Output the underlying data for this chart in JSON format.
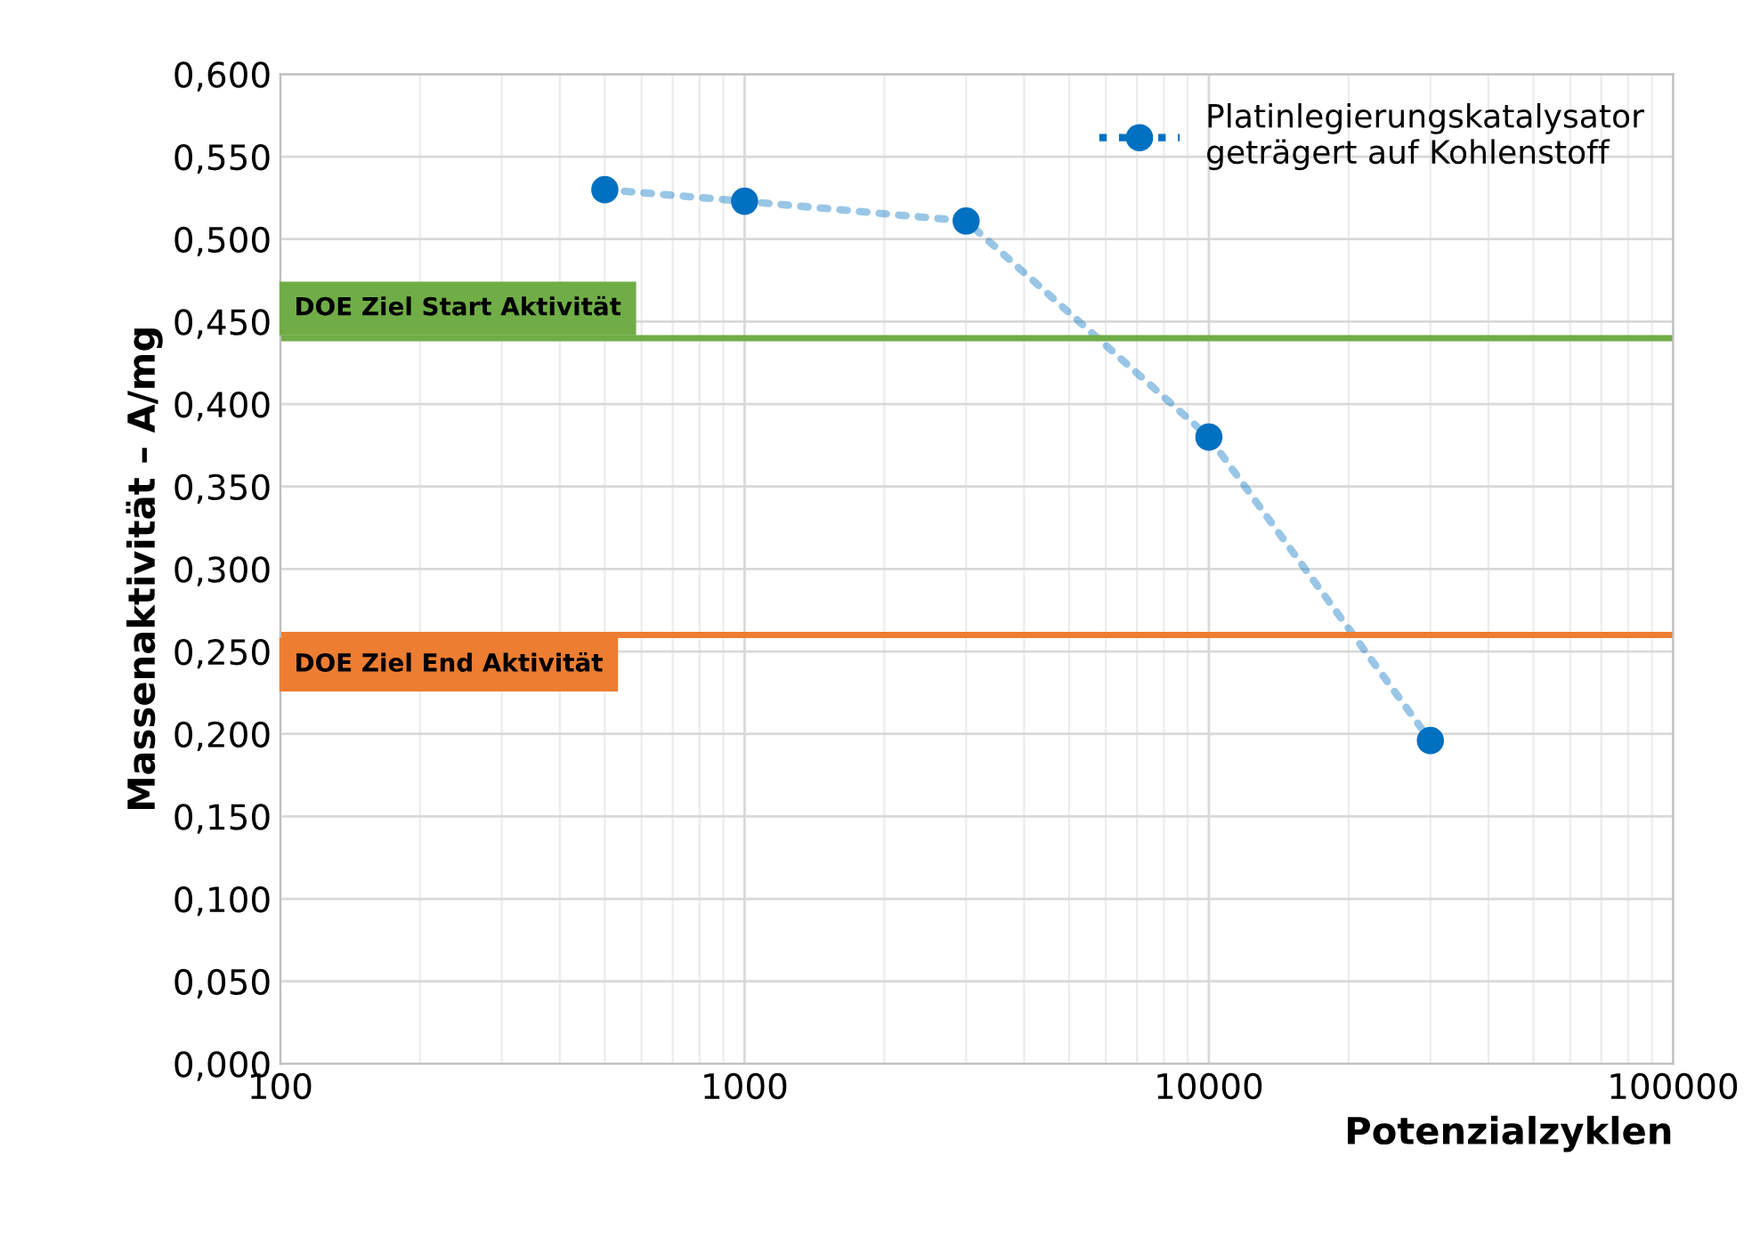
{
  "chart_data": {
    "type": "line",
    "xlabel": "Potenzialzyklen",
    "ylabel": "Massenaktivität – A/mg",
    "log": "x",
    "xlim": [
      100,
      100000
    ],
    "xticks": [
      100,
      1000,
      10000,
      100000
    ],
    "ylim": [
      0,
      0.6
    ],
    "yticks": [
      {
        "value": 0,
        "label": "0,000"
      },
      {
        "value": 0.05,
        "label": "0,050"
      },
      {
        "value": 0.1,
        "label": "0,100"
      },
      {
        "value": 0.15,
        "label": "0,150"
      },
      {
        "value": 0.2,
        "label": "0,200"
      },
      {
        "value": 0.25,
        "label": "0,250"
      },
      {
        "value": 0.3,
        "label": "0,300"
      },
      {
        "value": 0.35,
        "label": "0,350"
      },
      {
        "value": 0.4,
        "label": "0,400"
      },
      {
        "value": 0.45,
        "label": "0,450"
      },
      {
        "value": 0.5,
        "label": "0,500"
      },
      {
        "value": 0.55,
        "label": "0,550"
      },
      {
        "value": 0.6,
        "label": "0,600"
      }
    ],
    "grid": true,
    "legend": "top right",
    "marker": "circle",
    "line_style": "dotted",
    "series": [
      {
        "name": "Platinlegierungskatalysator\ngeträgert auf Kohlenstoff",
        "color": "#0070c0",
        "x": [
          500,
          1000,
          3000,
          10000,
          30000
        ],
        "values": [
          0.53,
          0.523,
          0.511,
          0.38,
          0.196
        ]
      }
    ],
    "ref_lines": [
      {
        "axis": "y",
        "value": 0.44,
        "label": "DOE Ziel Start Aktivität",
        "color": "#70ad47"
      },
      {
        "axis": "y",
        "value": 0.26,
        "label": "DOE Ziel End Aktivität",
        "color": "#ed7d31"
      }
    ]
  }
}
